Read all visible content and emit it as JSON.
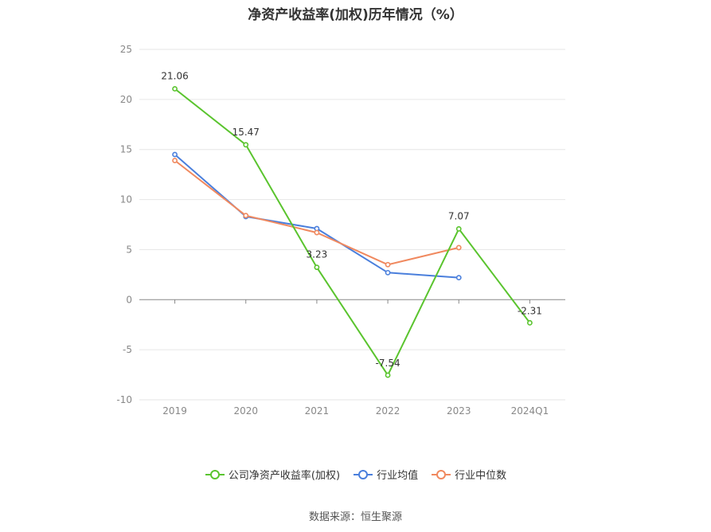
{
  "title": "净资产收益率(加权)历年情况（%）",
  "source": "数据来源：恒生聚源",
  "chart_data": {
    "type": "line",
    "categories": [
      "2019",
      "2020",
      "2021",
      "2022",
      "2023",
      "2024Q1"
    ],
    "ylim": [
      -10,
      25
    ],
    "yticks": [
      25,
      20,
      15,
      10,
      5,
      0,
      -5,
      -10
    ],
    "ytick_labels": [
      "25",
      "20",
      "15",
      "10",
      "5",
      "0",
      "-5",
      "-10"
    ],
    "grid": true,
    "legend_position": "bottom",
    "series": [
      {
        "name": "公司净资产收益率(加权)",
        "color": "#5ac42e",
        "values": [
          21.06,
          15.47,
          3.23,
          -7.54,
          7.07,
          -2.31
        ],
        "labels": [
          "21.06",
          "15.47",
          "3.23",
          "-7.54",
          "7.07",
          "-2.31"
        ]
      },
      {
        "name": "行业均值",
        "color": "#4a7fdc",
        "values": [
          14.5,
          8.3,
          7.1,
          2.7,
          2.2,
          null
        ]
      },
      {
        "name": "行业中位数",
        "color": "#f0895f",
        "values": [
          13.9,
          8.4,
          6.7,
          3.5,
          5.2,
          null
        ]
      }
    ]
  }
}
